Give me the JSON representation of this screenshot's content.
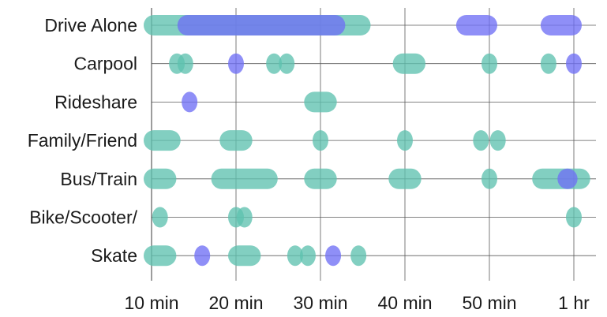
{
  "chart_data": {
    "type": "range-dot",
    "categories": [
      "Drive Alone",
      "Carpool",
      "Rideshare",
      "Family/Friend",
      "Bus/Train",
      "Bike/Scooter/",
      "Skate"
    ],
    "x_ticks": [
      {
        "value": 10,
        "label": "10 min"
      },
      {
        "value": 20,
        "label": "20 min"
      },
      {
        "value": 30,
        "label": "30 min"
      },
      {
        "value": 40,
        "label": "40 min"
      },
      {
        "value": 50,
        "label": "50 min"
      },
      {
        "value": 60,
        "label": "1 hr"
      }
    ],
    "xlim": [
      10,
      60
    ],
    "x_unit": "minutes",
    "grid": true,
    "colors": {
      "teal": "#5fc1b0",
      "blue": "#6f6ff5",
      "overlap": "#2e5fc2"
    },
    "series": [
      {
        "color": "teal",
        "segments": [
          {
            "row": 0,
            "start": 10,
            "end": 35
          },
          {
            "row": 1,
            "start": 13,
            "end": 13
          },
          {
            "row": 1,
            "start": 14,
            "end": 14
          },
          {
            "row": 1,
            "start": 24.5,
            "end": 24.5
          },
          {
            "row": 1,
            "start": 26,
            "end": 26
          },
          {
            "row": 1,
            "start": 39.5,
            "end": 41.5
          },
          {
            "row": 1,
            "start": 50,
            "end": 50
          },
          {
            "row": 1,
            "start": 57,
            "end": 57
          },
          {
            "row": 2,
            "start": 29,
            "end": 31
          },
          {
            "row": 3,
            "start": 10,
            "end": 12.5
          },
          {
            "row": 3,
            "start": 19,
            "end": 21
          },
          {
            "row": 3,
            "start": 30,
            "end": 30
          },
          {
            "row": 3,
            "start": 40,
            "end": 40
          },
          {
            "row": 3,
            "start": 49,
            "end": 49
          },
          {
            "row": 3,
            "start": 51,
            "end": 51
          },
          {
            "row": 4,
            "start": 10,
            "end": 12
          },
          {
            "row": 4,
            "start": 18,
            "end": 24
          },
          {
            "row": 4,
            "start": 29,
            "end": 31
          },
          {
            "row": 4,
            "start": 39,
            "end": 41
          },
          {
            "row": 4,
            "start": 50,
            "end": 50
          },
          {
            "row": 4,
            "start": 56,
            "end": 61
          },
          {
            "row": 5,
            "start": 11,
            "end": 11
          },
          {
            "row": 5,
            "start": 20,
            "end": 20
          },
          {
            "row": 5,
            "start": 21,
            "end": 21
          },
          {
            "row": 5,
            "start": 60,
            "end": 60
          },
          {
            "row": 6,
            "start": 10,
            "end": 12
          },
          {
            "row": 6,
            "start": 20,
            "end": 22
          },
          {
            "row": 6,
            "start": 27,
            "end": 27
          },
          {
            "row": 6,
            "start": 28.5,
            "end": 28.5
          },
          {
            "row": 6,
            "start": 34.5,
            "end": 34.5
          }
        ]
      },
      {
        "color": "blue",
        "segments": [
          {
            "row": 0,
            "start": 14,
            "end": 32
          },
          {
            "row": 0,
            "start": 47,
            "end": 50
          },
          {
            "row": 0,
            "start": 57,
            "end": 60
          },
          {
            "row": 1,
            "start": 20,
            "end": 20
          },
          {
            "row": 1,
            "start": 60,
            "end": 60
          },
          {
            "row": 2,
            "start": 14.5,
            "end": 14.5
          },
          {
            "row": 4,
            "start": 59,
            "end": 59.5
          },
          {
            "row": 6,
            "start": 16,
            "end": 16
          },
          {
            "row": 6,
            "start": 31.5,
            "end": 31.5
          }
        ]
      }
    ]
  }
}
